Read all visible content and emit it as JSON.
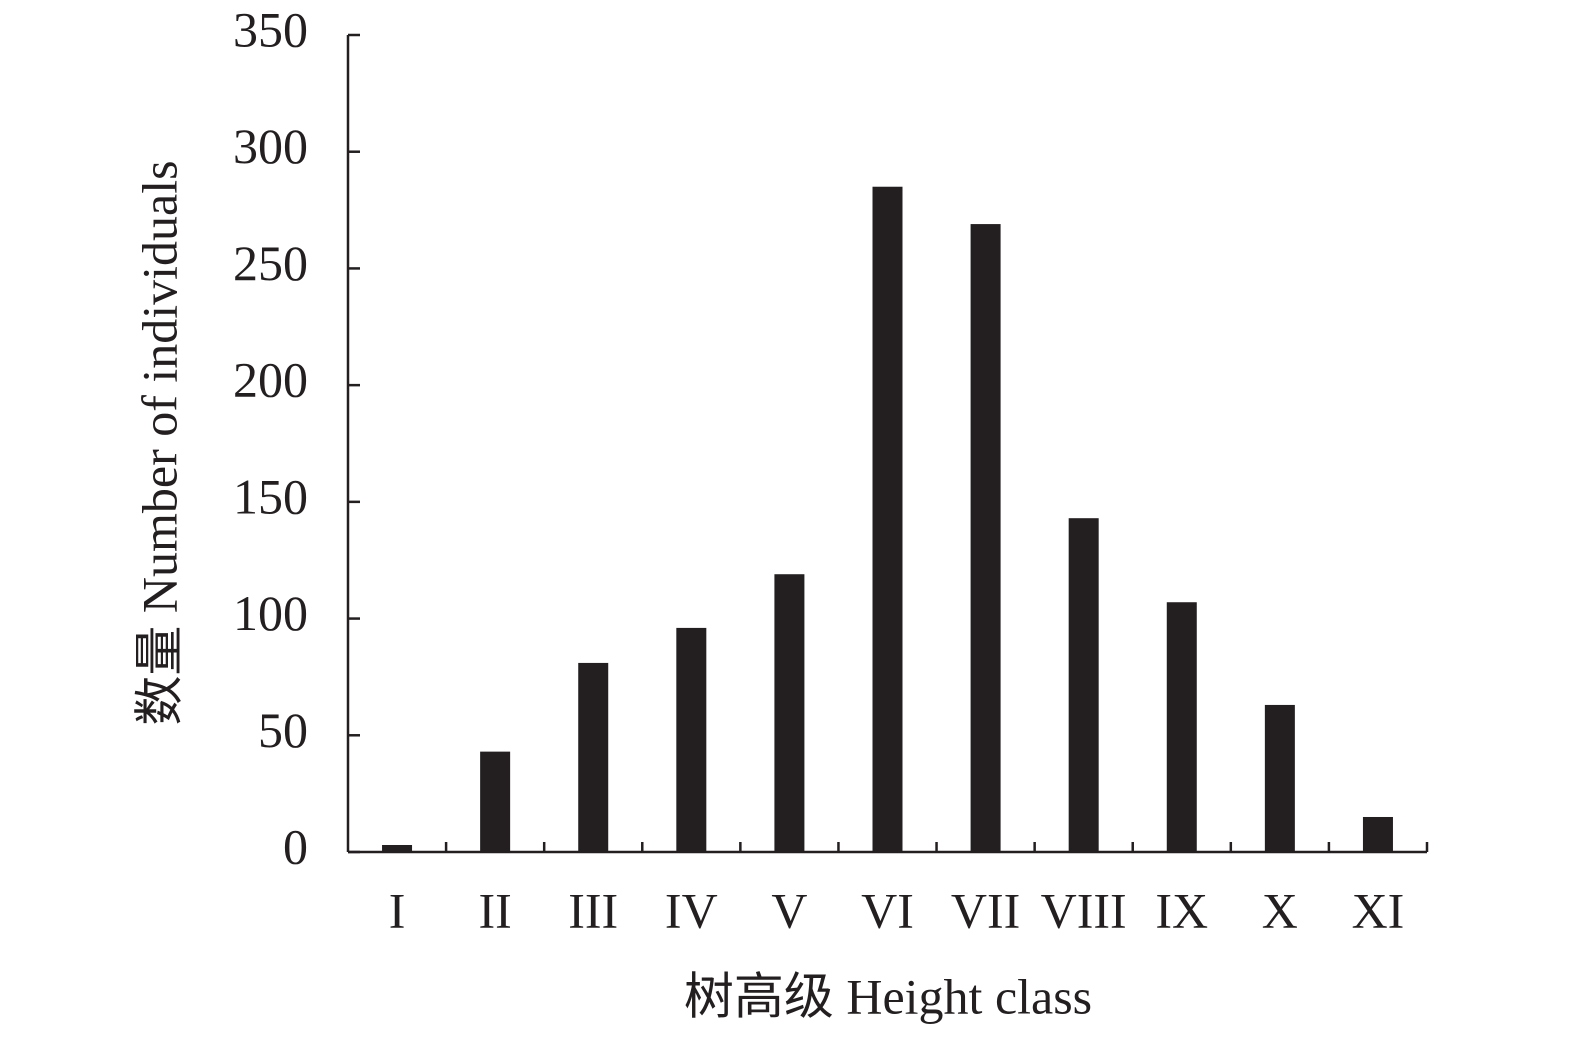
{
  "chart_data": {
    "type": "bar",
    "xlabel": "树高级 Height class",
    "ylabel": "数量 Number of individuals",
    "categories": [
      "I",
      "II",
      "III",
      "IV",
      "V",
      "VI",
      "VII",
      "VIII",
      "IX",
      "X",
      "XI"
    ],
    "values": [
      3,
      43,
      81,
      96,
      119,
      285,
      269,
      143,
      107,
      63,
      15
    ],
    "color": "#231f20",
    "ylim": [
      0,
      350
    ],
    "yticks": [
      0,
      50,
      100,
      150,
      200,
      250,
      300,
      350
    ],
    "grid": false
  }
}
